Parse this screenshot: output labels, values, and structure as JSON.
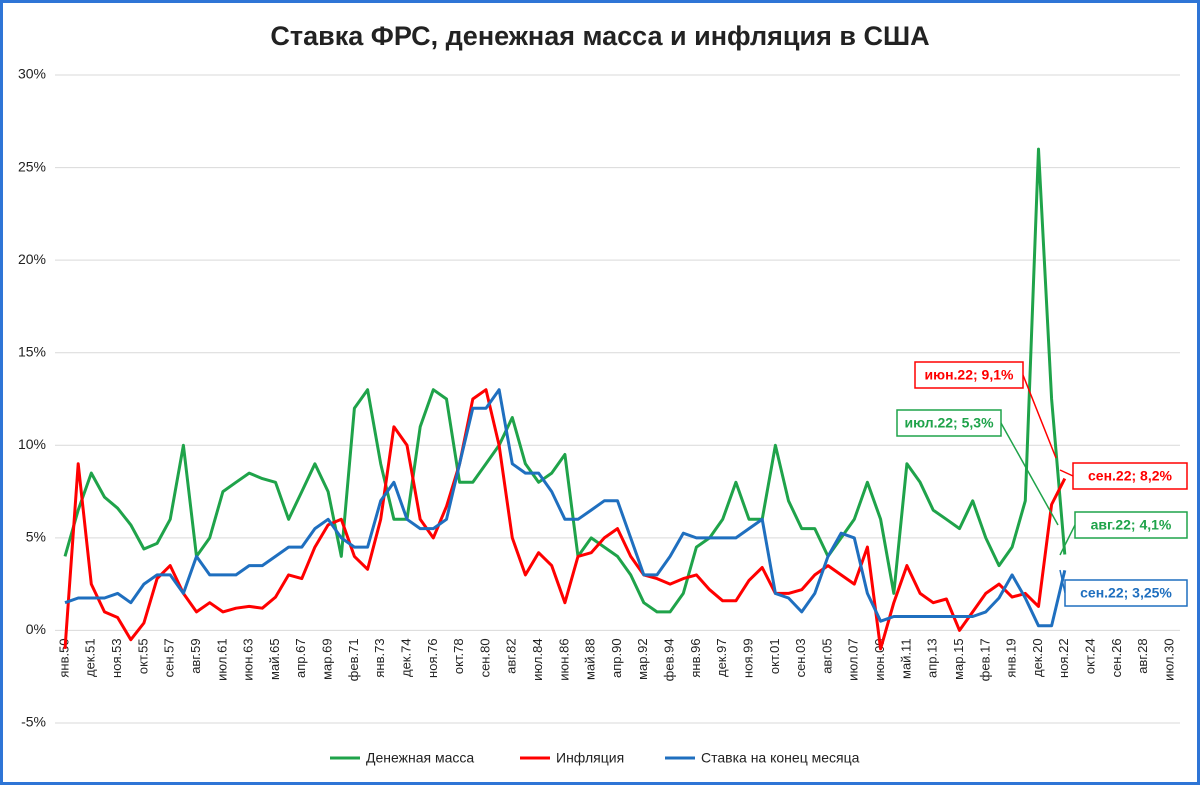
{
  "chart_data": {
    "type": "line",
    "title": "Ставка ФРС, денежная масса и инфляция в США",
    "categories": [
      "янв.50",
      null,
      "дек.51",
      null,
      "ноя.53",
      null,
      "окт.55",
      null,
      "сен.57",
      null,
      "авг.59",
      null,
      "июл.61",
      null,
      "июн.63",
      null,
      "май.65",
      null,
      "апр.67",
      null,
      "мар.69",
      null,
      "фев.71",
      null,
      "янв.73",
      null,
      "дек.74",
      null,
      "ноя.76",
      null,
      "окт.78",
      null,
      "сен.80",
      null,
      "авг.82",
      null,
      "июл.84",
      null,
      "июн.86",
      null,
      "май.88",
      null,
      "апр.90",
      null,
      "мар.92",
      null,
      "фев.94",
      null,
      "янв.96",
      null,
      "дек.97",
      null,
      "ноя.99",
      null,
      "окт.01",
      null,
      "сен.03",
      null,
      "авг.05",
      null,
      "июл.07",
      null,
      "июн.09",
      null,
      "май.11",
      null,
      "апр.13",
      null,
      "мар.15",
      null,
      "фев.17",
      null,
      "янв.19",
      null,
      "дек.20",
      null,
      "ноя.22",
      null,
      "окт.24",
      null,
      "сен.26",
      null,
      "авг.28",
      null,
      "июл.30"
    ],
    "series": [
      {
        "name": "Денежная масса",
        "color": "#1fa34a",
        "values": [
          4,
          6.5,
          8.5,
          7.2,
          6.6,
          5.7,
          4.4,
          4.7,
          6,
          10,
          4,
          5,
          7.5,
          8,
          8.5,
          8.2,
          8,
          6,
          7.5,
          9,
          7.5,
          4,
          12,
          13,
          9,
          6,
          6,
          11,
          13,
          12.5,
          8,
          8,
          9,
          10,
          11.5,
          9,
          8,
          8.5,
          9.5,
          4,
          5,
          4.5,
          4,
          3,
          1.5,
          1,
          1,
          2,
          4.5,
          5,
          6,
          8,
          6,
          6,
          10,
          7,
          5.5,
          5.5,
          4,
          5,
          6,
          8,
          6,
          2,
          9,
          8,
          6.5,
          6,
          5.5,
          7,
          5,
          3.5,
          4.5,
          7,
          26,
          12.5,
          4.1,
          null,
          null,
          null,
          null,
          null,
          null,
          null,
          null
        ]
      },
      {
        "name": "Инфляция",
        "color": "#ff0000",
        "values": [
          -1,
          9,
          2.5,
          1,
          0.7,
          -0.5,
          0.4,
          2.8,
          3.5,
          2,
          1,
          1.5,
          1,
          1.2,
          1.3,
          1.2,
          1.8,
          3,
          2.8,
          4.5,
          5.7,
          6,
          4,
          3.3,
          6,
          11,
          10,
          6,
          5,
          6.7,
          9,
          12.5,
          13,
          10,
          5,
          3,
          4.2,
          3.5,
          1.5,
          4,
          4.2,
          5,
          5.5,
          4,
          3,
          2.8,
          2.5,
          2.8,
          3,
          2.2,
          1.6,
          1.6,
          2.7,
          3.4,
          2,
          2,
          2.2,
          3,
          3.5,
          3,
          2.5,
          4.5,
          -1,
          1.5,
          3.5,
          2,
          1.5,
          1.7,
          0,
          1,
          2,
          2.5,
          1.8,
          2,
          1.3,
          6.8,
          8.2,
          null,
          null,
          null,
          null,
          null,
          null,
          null,
          null
        ]
      },
      {
        "name": "Ставка на конец месяца",
        "color": "#1f6fbf",
        "values": [
          1.5,
          1.75,
          1.75,
          1.75,
          2,
          1.5,
          2.5,
          3,
          3,
          2,
          4,
          3,
          3,
          3,
          3.5,
          3.5,
          4,
          4.5,
          4.5,
          5.5,
          6,
          5,
          4.5,
          4.5,
          7,
          8,
          6,
          5.5,
          5.5,
          6,
          9,
          12,
          12,
          13,
          9,
          8.5,
          8.5,
          7.5,
          6,
          6,
          6.5,
          7,
          7,
          5,
          3,
          3,
          4,
          5.25,
          5,
          5,
          5,
          5,
          5.5,
          6,
          2,
          1.75,
          1,
          2,
          4,
          5.25,
          5,
          2,
          0.5,
          0.75,
          0.75,
          0.75,
          0.75,
          0.75,
          0.75,
          0.75,
          1,
          1.75,
          3,
          1.75,
          0.25,
          0.25,
          3.25,
          null,
          null,
          null,
          null,
          null,
          null,
          null,
          null
        ]
      }
    ],
    "ylim": [
      -5,
      30
    ],
    "yticks": [
      {
        "value": -5,
        "label": "-5%"
      },
      {
        "value": 0,
        "label": "0%"
      },
      {
        "value": 5,
        "label": "5%"
      },
      {
        "value": 10,
        "label": "10%"
      },
      {
        "value": 15,
        "label": "15%"
      },
      {
        "value": 20,
        "label": "20%"
      },
      {
        "value": 25,
        "label": "25%"
      },
      {
        "value": 30,
        "label": "30%"
      }
    ],
    "grid": true,
    "legend": "bottom",
    "annotations": [
      {
        "text": "июн.22; 9,1%",
        "color": "#ff0000"
      },
      {
        "text": "июл.22; 5,3%",
        "color": "#1fa34a"
      },
      {
        "text": "сен.22; 8,2%",
        "color": "#ff0000"
      },
      {
        "text": "авг.22; 4,1%",
        "color": "#1fa34a"
      },
      {
        "text": "сен.22; 3,25%",
        "color": "#1f6fbf"
      }
    ]
  }
}
